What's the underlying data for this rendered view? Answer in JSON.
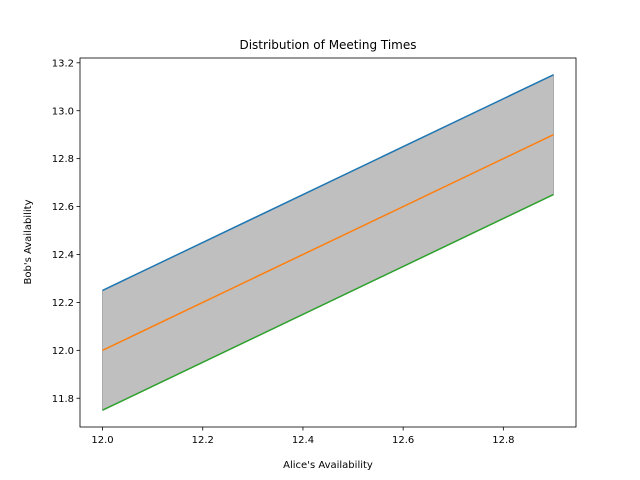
{
  "chart_data": {
    "type": "line",
    "title": "Distribution of Meeting Times",
    "xlabel": "Alice's Availability",
    "ylabel": "Bob's Availability",
    "xlim": [
      11.955,
      12.945
    ],
    "ylim": [
      11.68,
      13.22
    ],
    "grid": false,
    "legend": "none",
    "x": [
      12.0,
      12.9
    ],
    "series": [
      {
        "values": [
          12.25,
          13.15
        ],
        "color": "#1f77b4"
      },
      {
        "values": [
          12.0,
          12.9
        ],
        "color": "#ff7f0e"
      },
      {
        "values": [
          11.75,
          12.65
        ],
        "color": "#2ca02c"
      }
    ],
    "fill_between": {
      "upper_series": 0,
      "lower_series": 2,
      "color": "#bfbfbf",
      "alpha": 0.5
    },
    "xticks": [
      {
        "value": 12.0,
        "label": "12.0"
      },
      {
        "value": 12.2,
        "label": "12.2"
      },
      {
        "value": 12.4,
        "label": "12.4"
      },
      {
        "value": 12.6,
        "label": "12.6"
      },
      {
        "value": 12.8,
        "label": "12.8"
      }
    ],
    "yticks": [
      {
        "value": 11.8,
        "label": "11.8"
      },
      {
        "value": 12.0,
        "label": "12.0"
      },
      {
        "value": 12.2,
        "label": "12.2"
      },
      {
        "value": 12.4,
        "label": "12.4"
      },
      {
        "value": 12.6,
        "label": "12.6"
      },
      {
        "value": 12.8,
        "label": "12.8"
      },
      {
        "value": 13.0,
        "label": "13.0"
      },
      {
        "value": 13.2,
        "label": "13.2"
      }
    ]
  }
}
